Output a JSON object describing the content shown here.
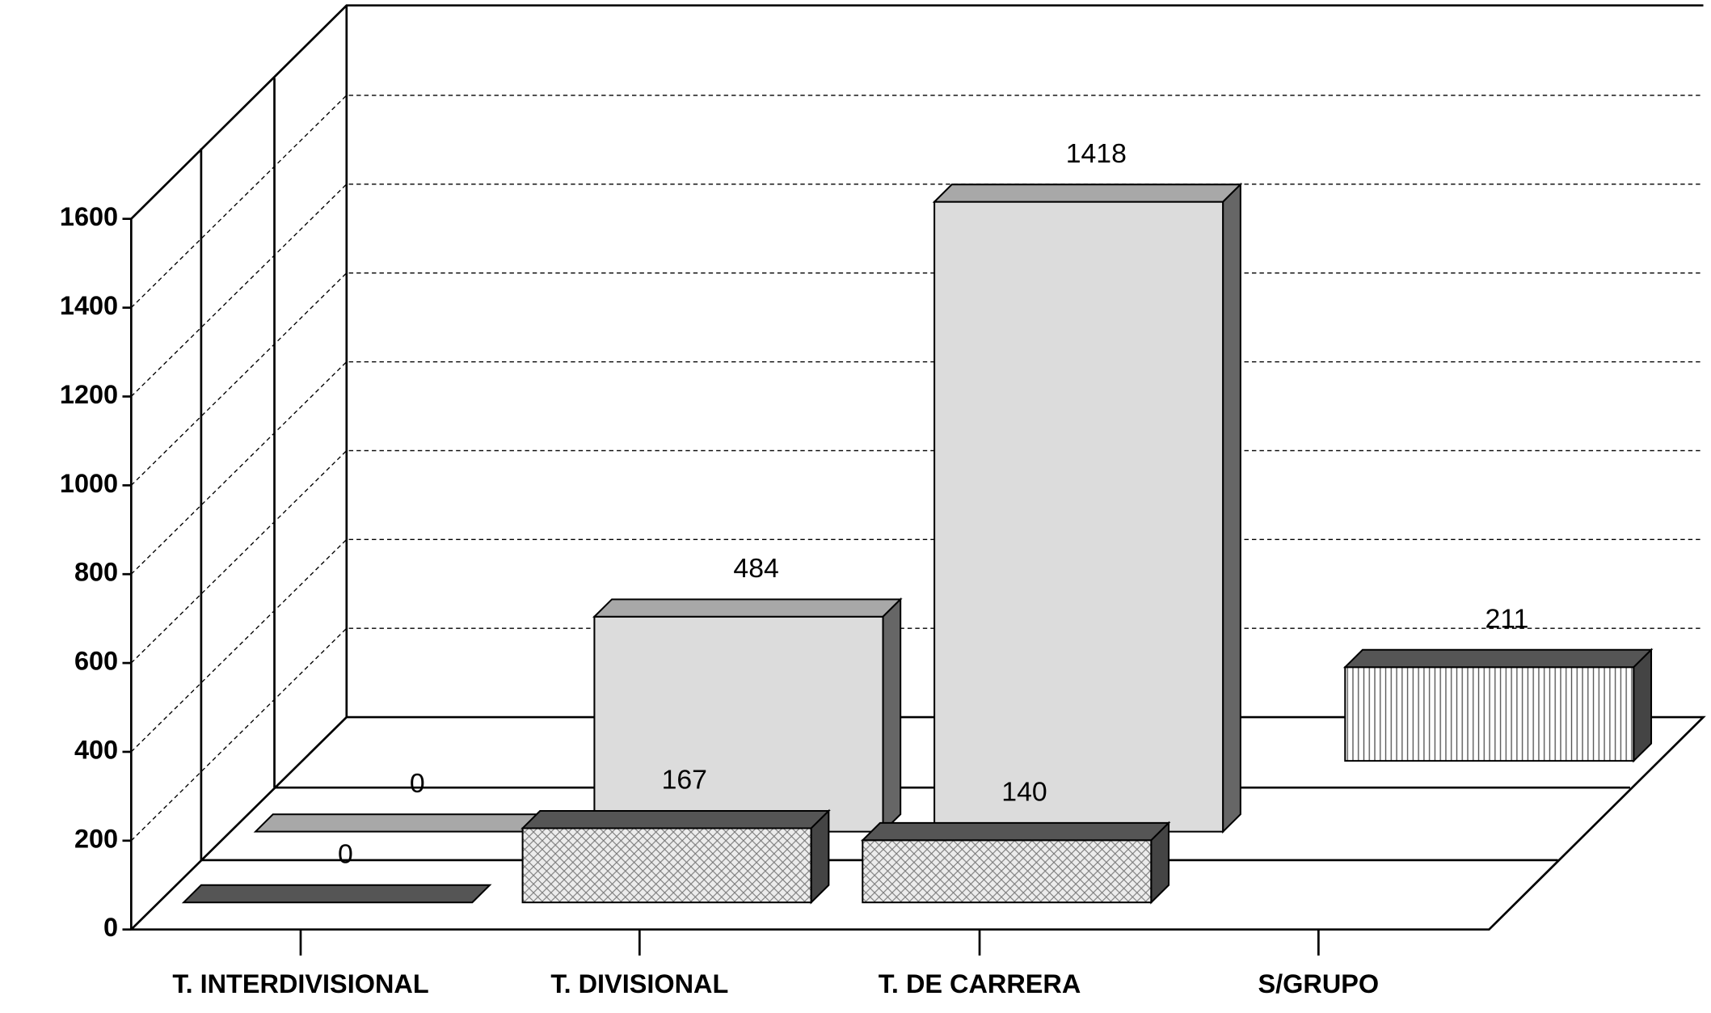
{
  "chart_data": {
    "type": "bar3d",
    "categories": [
      "T. INTERDIVISIONAL",
      "T. DIVISIONAL",
      "T. DE CARRERA",
      "S/GRUPO"
    ],
    "series": [
      {
        "color": "#ececec",
        "hatch": "cross",
        "values": [
          0,
          167,
          140,
          null
        ]
      },
      {
        "color": "#dcdcdc",
        "hatch": "none",
        "values": [
          0,
          484,
          1418,
          null
        ]
      },
      {
        "color": "#ffffff",
        "hatch": "vertical",
        "values": [
          null,
          null,
          null,
          211
        ]
      }
    ],
    "ylim": [
      0,
      1600
    ],
    "yticks": [
      0,
      200,
      400,
      600,
      800,
      1000,
      1200,
      1400,
      1600
    ],
    "grid": true
  }
}
